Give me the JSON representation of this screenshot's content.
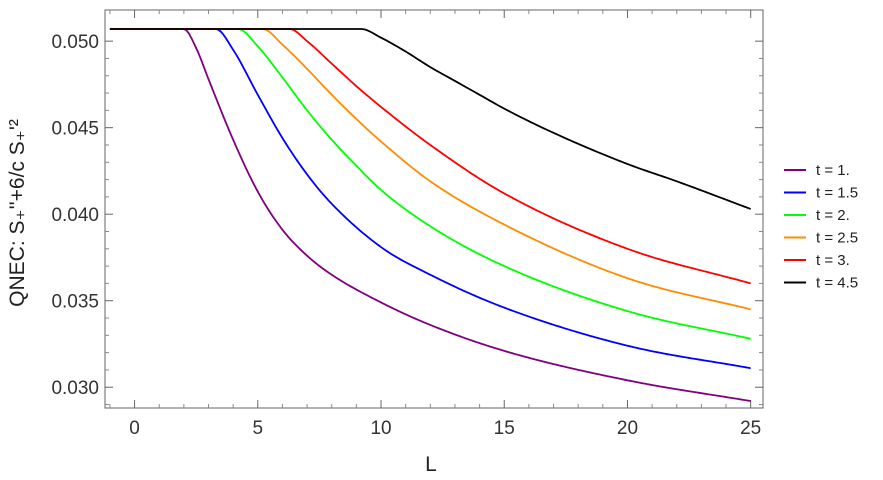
{
  "chart_data": {
    "type": "line",
    "xlabel": "L",
    "ylabel": "QNEC: S₊''+6/c S₊'²",
    "xlim": [
      -1.2,
      25.5
    ],
    "ylim": [
      0.0288,
      0.0518
    ],
    "x_ticks": [
      0,
      5,
      10,
      15,
      20,
      25
    ],
    "x_tick_labels": [
      "0",
      "5",
      "10",
      "15",
      "20",
      "25"
    ],
    "y_ticks": [
      0.03,
      0.035,
      0.04,
      0.045,
      0.05
    ],
    "y_tick_labels": [
      "0.030",
      "0.035",
      "0.040",
      "0.045",
      "0.050"
    ],
    "grid": false,
    "legend_position": "right",
    "series": [
      {
        "name": "t = 1.",
        "color": "#800080",
        "x": [
          -1,
          2.0,
          2.5,
          3,
          4,
          5,
          6,
          7,
          8,
          10,
          12,
          15,
          20,
          25
        ],
        "y": [
          0.0507,
          0.0507,
          0.0496,
          0.0478,
          0.0443,
          0.0413,
          0.0391,
          0.0376,
          0.0365,
          0.0349,
          0.0336,
          0.0321,
          0.0304,
          0.0292
        ]
      },
      {
        "name": "t = 1.5",
        "color": "#0000ff",
        "x": [
          -1,
          3.3,
          4,
          5,
          6,
          7,
          8,
          10,
          12,
          15,
          20,
          25
        ],
        "y": [
          0.0507,
          0.0507,
          0.0495,
          0.0469,
          0.0444,
          0.0423,
          0.0406,
          0.0381,
          0.0365,
          0.0346,
          0.0324,
          0.0311
        ]
      },
      {
        "name": "t = 2.",
        "color": "#00ff00",
        "x": [
          -1,
          4.2,
          5,
          6,
          7,
          8,
          9,
          10,
          12,
          15,
          20,
          25
        ],
        "y": [
          0.0507,
          0.0507,
          0.0497,
          0.0479,
          0.046,
          0.0443,
          0.0428,
          0.0414,
          0.0393,
          0.037,
          0.0344,
          0.0328
        ]
      },
      {
        "name": "t = 2.5",
        "color": "#ff8c00",
        "x": [
          -1,
          5.2,
          6,
          7,
          8,
          9,
          10,
          12,
          15,
          20,
          25
        ],
        "y": [
          0.0507,
          0.0507,
          0.0498,
          0.0484,
          0.0469,
          0.0455,
          0.0442,
          0.0419,
          0.0394,
          0.0363,
          0.0345
        ]
      },
      {
        "name": "t = 3.",
        "color": "#ff0000",
        "x": [
          -1,
          6.3,
          7,
          8,
          9,
          10,
          12,
          15,
          20,
          25
        ],
        "y": [
          0.0507,
          0.0507,
          0.05,
          0.0487,
          0.0474,
          0.0462,
          0.044,
          0.0412,
          0.038,
          0.036
        ]
      },
      {
        "name": "t = 4.5",
        "color": "#000000",
        "x": [
          -1,
          9.2,
          10,
          11,
          12,
          13,
          14,
          15,
          17,
          20,
          22,
          25
        ],
        "y": [
          0.0507,
          0.0507,
          0.0502,
          0.0494,
          0.0485,
          0.0477,
          0.0469,
          0.0461,
          0.0447,
          0.0429,
          0.0419,
          0.0403
        ]
      }
    ]
  }
}
